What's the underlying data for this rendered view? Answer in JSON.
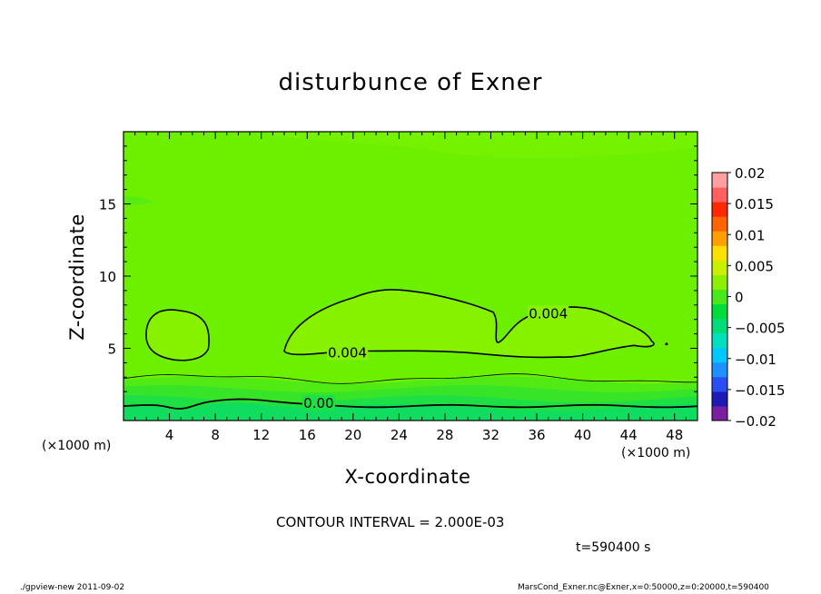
{
  "chart_data": {
    "type": "heatmap",
    "title": "disturbunce of Exner",
    "xlabel": "X-coordinate",
    "ylabel": "Z-coordinate",
    "x_unit": "(×1000 m)",
    "xlim": [
      0,
      50
    ],
    "ylim": [
      0,
      20
    ],
    "x_ticks": [
      4,
      8,
      12,
      16,
      20,
      24,
      28,
      32,
      36,
      40,
      44,
      48
    ],
    "y_ticks": [
      5,
      10,
      15
    ],
    "colorbar": {
      "ticks": [
        "0.02",
        "0.015",
        "0.01",
        "0.005",
        "0",
        "−0.005",
        "−0.01",
        "−0.015",
        "−0.02"
      ],
      "range": [
        -0.02,
        0.02
      ],
      "bands": [
        "#7a1fa2",
        "#1c1cb4",
        "#2a4ef0",
        "#1e90ff",
        "#00c8ff",
        "#00e0c0",
        "#00dc78",
        "#00dc3c",
        "#48e81c",
        "#8cf000",
        "#c8f000",
        "#ffe100",
        "#ffa000",
        "#ff6400",
        "#ff2800",
        "#ff6060",
        "#ffa0a0"
      ]
    },
    "contour_labels": [
      {
        "text": "0.004",
        "x": 19.5,
        "z": 4.7
      },
      {
        "text": "0.004",
        "x": 37,
        "z": 7.4
      },
      {
        "text": "0.00",
        "x": 17,
        "z": 1.2
      }
    ],
    "contour_interval": "CONTOUR INTERVAL = 2.000E-03",
    "time": "t=590400 s"
  },
  "footer": {
    "left": "./gpview-new  2011-09-02",
    "right": "MarsCond_Exner.nc@Exner,x=0:50000,z=0:20000,t=590400"
  }
}
